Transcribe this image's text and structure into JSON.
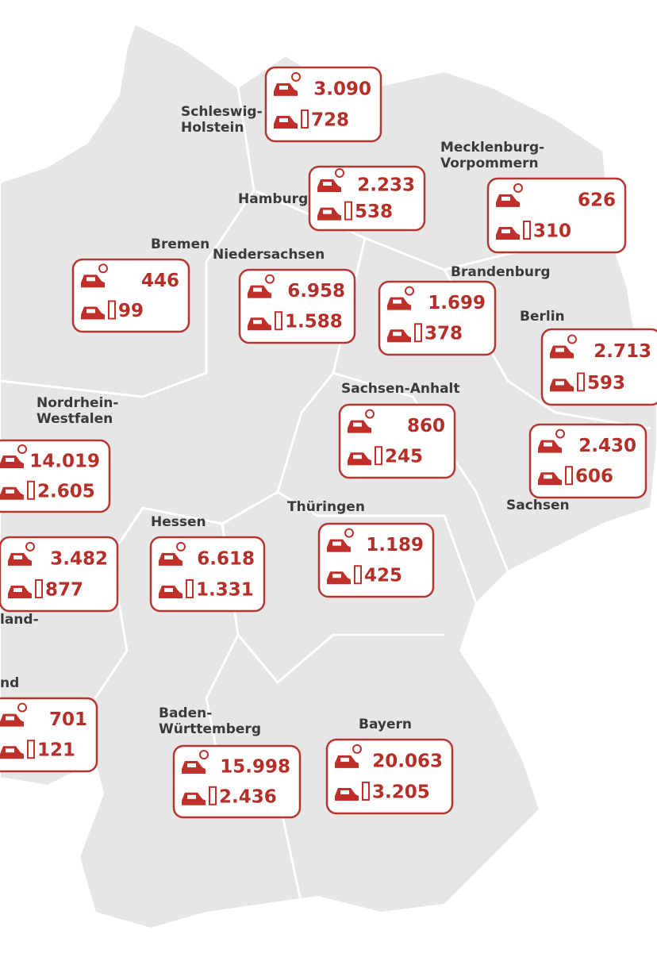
{
  "regions": [
    {
      "label": [
        "Schleswig-",
        "Holstein"
      ],
      "stations": "3.090",
      "points": "728"
    },
    {
      "label": [
        "Hamburg"
      ],
      "stations": "2.233",
      "points": "538"
    },
    {
      "label": [
        "Mecklenburg-",
        "Vorpommern"
      ],
      "stations": "626",
      "points": "310"
    },
    {
      "label": [
        "Bremen"
      ],
      "stations": "446",
      "points": "99"
    },
    {
      "label": [
        "Niedersachsen"
      ],
      "stations": "6.958",
      "points": "1.588"
    },
    {
      "label": [
        "Brandenburg"
      ],
      "stations": "1.699",
      "points": "378"
    },
    {
      "label": [
        "Berlin"
      ],
      "stations": "2.713",
      "points": "593"
    },
    {
      "label": [
        "Sachsen-Anhalt"
      ],
      "stations": "860",
      "points": "245"
    },
    {
      "label": [
        "Sachsen"
      ],
      "stations": "2.430",
      "points": "606"
    },
    {
      "label": [
        "Nordrhein-",
        "Westfalen"
      ],
      "stations": "14.019",
      "points": "2.605"
    },
    {
      "label": [
        "Thüringen"
      ],
      "stations": "1.189",
      "points": "425"
    },
    {
      "label": [
        "Hessen"
      ],
      "stations": "6.618",
      "points": "1.331"
    },
    {
      "label": [
        "land-"
      ],
      "stations": "3.482",
      "points": "877"
    },
    {
      "label": [
        "nd"
      ],
      "stations": "701",
      "points": "121"
    },
    {
      "label": [
        "Baden-",
        "Württemberg"
      ],
      "stations": "15.998",
      "points": "2.436"
    },
    {
      "label": [
        "Bayern"
      ],
      "stations": "20.063",
      "points": "3.205"
    }
  ]
}
